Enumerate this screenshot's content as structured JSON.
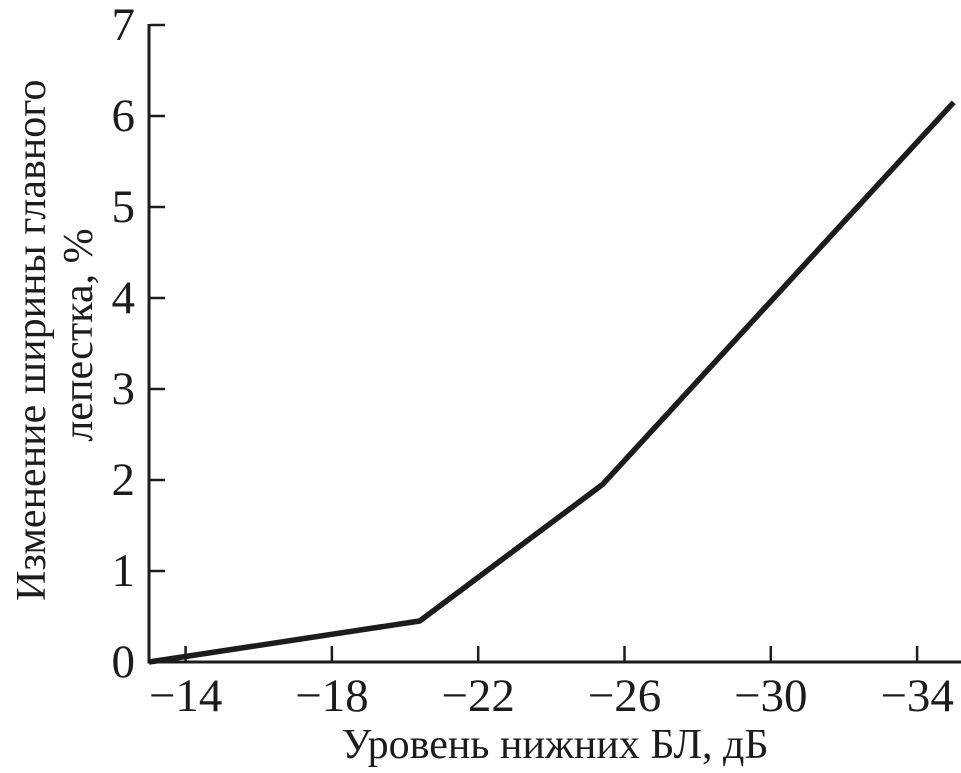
{
  "figure": {
    "background": "#ffffff",
    "ink_color": "#1c1c1c"
  },
  "chart_data": {
    "type": "line",
    "title": "",
    "xlabel": "Уровень нижних БЛ, дБ",
    "ylabel_lines": [
      "Изменение ширины главного",
      "лепестка, %"
    ],
    "x_unit": "дБ",
    "y_unit": "%",
    "x_ticks": [
      -14,
      -18,
      -22,
      -26,
      -30,
      -34
    ],
    "y_ticks": [
      0,
      1,
      2,
      3,
      4,
      5,
      6,
      7
    ],
    "xlim": [
      -13,
      -35.2
    ],
    "ylim": [
      0,
      7
    ],
    "x_axis_reversed": true,
    "grid": false,
    "legend": false,
    "line_color": "#1c1c1c",
    "series": [
      {
        "points": [
          {
            "x": -13.0,
            "y": 0.0
          },
          {
            "x": -20.4,
            "y": 0.45
          },
          {
            "x": -25.4,
            "y": 1.95
          },
          {
            "x": -35.0,
            "y": 6.15
          }
        ]
      }
    ]
  }
}
